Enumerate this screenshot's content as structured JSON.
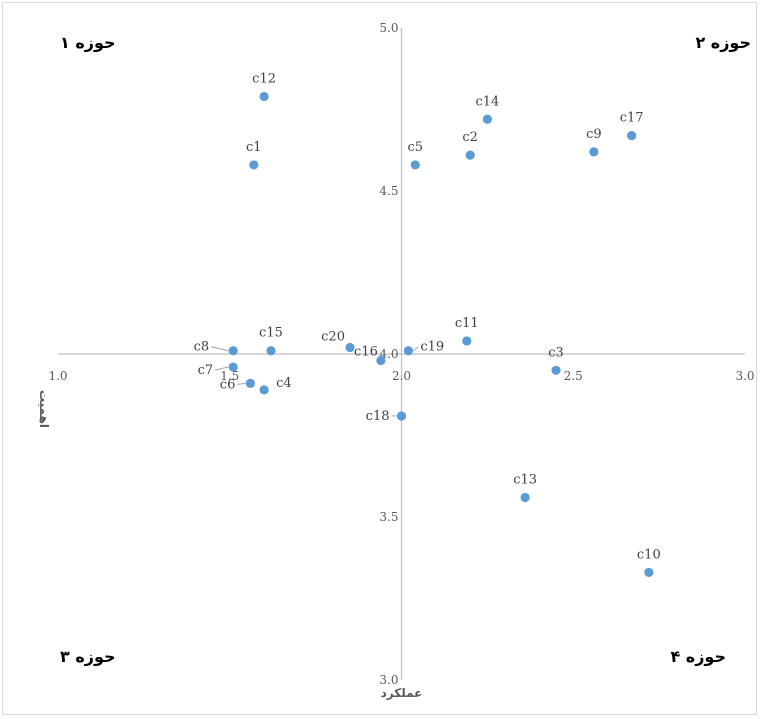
{
  "chart_data": {
    "type": "scatter",
    "xlabel": "عملکرد",
    "ylabel": "اهمیت",
    "xlim": [
      1.0,
      3.0
    ],
    "ylim": [
      3.0,
      5.0
    ],
    "x_ticks": [
      "1.0",
      "1.5",
      "2.0",
      "2.5",
      "3.0"
    ],
    "y_ticks": [
      "3.0",
      "3.5",
      "4.0",
      "4.5",
      "5.0"
    ],
    "axes_cross": {
      "x": 2.0,
      "y": 4.0
    },
    "grid": false,
    "marker_color": "#5b9bd5",
    "quadrants": [
      {
        "id": "q1",
        "label": "حوزه ۱",
        "position": "top-left"
      },
      {
        "id": "q2",
        "label": "حوزه ۲",
        "position": "top-right"
      },
      {
        "id": "q3",
        "label": "حوزه ۳",
        "position": "bottom-left"
      },
      {
        "id": "q4",
        "label": "حوزه ۴",
        "position": "bottom-right"
      }
    ],
    "points": [
      {
        "label": "c1",
        "x": 1.57,
        "y": 4.58
      },
      {
        "label": "c2",
        "x": 2.2,
        "y": 4.61
      },
      {
        "label": "c3",
        "x": 2.45,
        "y": 3.95
      },
      {
        "label": "c4",
        "x": 1.6,
        "y": 3.89
      },
      {
        "label": "c5",
        "x": 2.04,
        "y": 4.58
      },
      {
        "label": "c6",
        "x": 1.56,
        "y": 3.91
      },
      {
        "label": "c7",
        "x": 1.51,
        "y": 3.96
      },
      {
        "label": "c8",
        "x": 1.51,
        "y": 4.01
      },
      {
        "label": "c9",
        "x": 2.56,
        "y": 4.62
      },
      {
        "label": "c10",
        "x": 2.72,
        "y": 3.33
      },
      {
        "label": "c11",
        "x": 2.19,
        "y": 4.04
      },
      {
        "label": "c12",
        "x": 1.6,
        "y": 4.79
      },
      {
        "label": "c13",
        "x": 2.36,
        "y": 3.56
      },
      {
        "label": "c14",
        "x": 2.25,
        "y": 4.72
      },
      {
        "label": "c15",
        "x": 1.62,
        "y": 4.01
      },
      {
        "label": "c16",
        "x": 1.94,
        "y": 3.98
      },
      {
        "label": "c17",
        "x": 2.67,
        "y": 4.67
      },
      {
        "label": "c18",
        "x": 2.0,
        "y": 3.81
      },
      {
        "label": "c19",
        "x": 2.02,
        "y": 4.01
      },
      {
        "label": "c20",
        "x": 1.85,
        "y": 4.02
      }
    ]
  }
}
